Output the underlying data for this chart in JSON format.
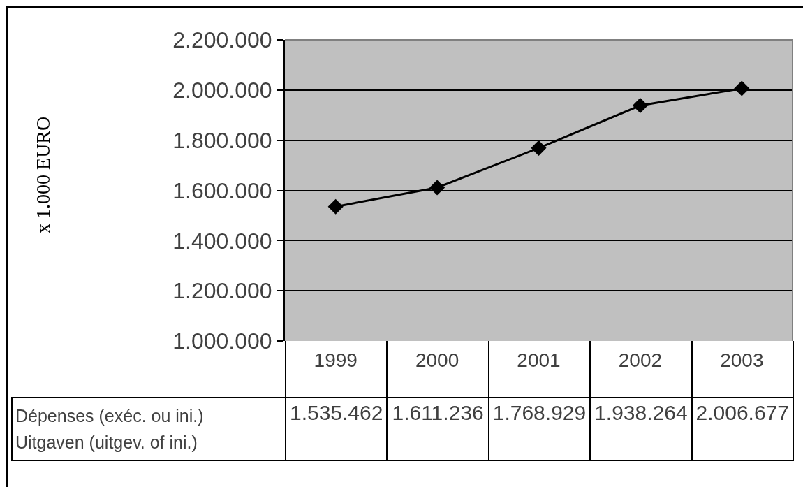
{
  "chart_data": {
    "type": "line",
    "annotations": [
      "x 1.000 EURO"
    ],
    "categories": [
      "1999",
      "2000",
      "2001",
      "2002",
      "2003"
    ],
    "series": [
      {
        "name": "Dépenses (exéc. ou ini.)\nUitgaven (uitgev. of ini.)",
        "color": "#000000",
        "values": [
          1535462,
          1611236,
          1768929,
          1938264,
          2006677
        ],
        "value_labels": [
          "1.535.462",
          "1.611.236",
          "1.768.929",
          "1.938.264",
          "2.006.677"
        ]
      }
    ],
    "ylim": [
      1000000,
      2200000
    ],
    "yticks": [
      {
        "value": 1000000,
        "label": "1.000.000"
      },
      {
        "value": 1200000,
        "label": "1.200.000"
      },
      {
        "value": 1400000,
        "label": "1.400.000"
      },
      {
        "value": 1600000,
        "label": "1.600.000"
      },
      {
        "value": 1800000,
        "label": "1.800.000"
      },
      {
        "value": 2000000,
        "label": "2.000.000"
      },
      {
        "value": 2200000,
        "label": "2.200.000"
      }
    ],
    "grid": "y",
    "marker": "diamond",
    "line_style": "solid",
    "legend": false
  }
}
